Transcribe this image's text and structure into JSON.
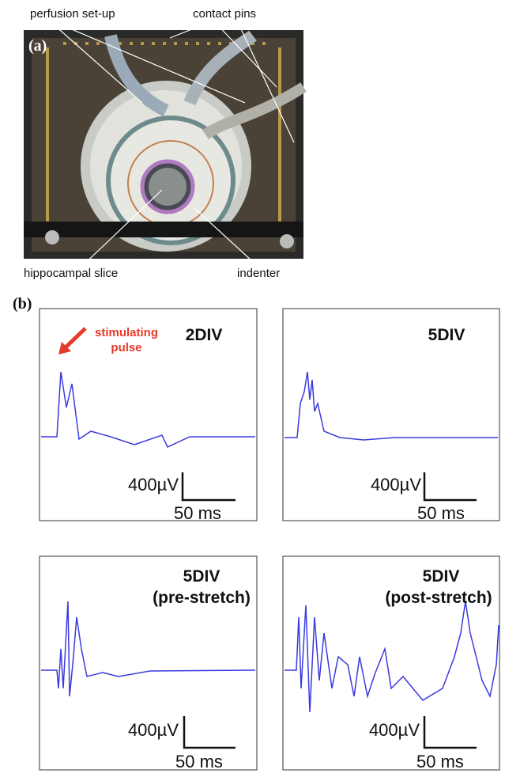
{
  "panel_a": {
    "label": "(a)",
    "annotations": [
      "perfusion set-up",
      "contact pins",
      "hippocampal slice",
      "indenter"
    ]
  },
  "panel_b": {
    "label": "(b)",
    "plots": [
      {
        "title": [
          "2DIV"
        ],
        "annotation": [
          "stimulating",
          "pulse"
        ],
        "scale_v": "400µV",
        "scale_t": "50 ms"
      },
      {
        "title": [
          "5DIV"
        ],
        "scale_v": "400µV",
        "scale_t": "50 ms"
      },
      {
        "title": [
          "5DIV",
          "(pre-stretch)"
        ],
        "scale_v": "400µV",
        "scale_t": "50 ms"
      },
      {
        "title": [
          "5DIV",
          "(post-stretch)"
        ],
        "scale_v": "400µV",
        "scale_t": "50 ms"
      }
    ]
  }
}
